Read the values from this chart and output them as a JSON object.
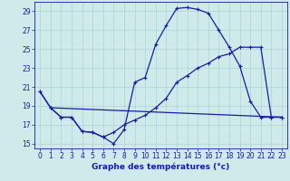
{
  "xlabel": "Graphe des températures (°c)",
  "background_color": "#ceeaea",
  "line_color": "#1a1aaa",
  "grid_color": "#aad4d4",
  "xlim": [
    -0.5,
    23.5
  ],
  "ylim": [
    14.5,
    30.0
  ],
  "xticks": [
    0,
    1,
    2,
    3,
    4,
    5,
    6,
    7,
    8,
    9,
    10,
    11,
    12,
    13,
    14,
    15,
    16,
    17,
    18,
    19,
    20,
    21,
    22,
    23
  ],
  "yticks": [
    15,
    17,
    19,
    21,
    23,
    25,
    27,
    29
  ],
  "curve1_x": [
    0,
    1,
    2,
    3,
    4,
    5,
    6,
    7,
    8,
    9,
    10,
    11,
    12,
    13,
    14,
    15,
    16,
    17,
    18,
    19,
    20,
    21,
    22,
    23
  ],
  "curve1_y": [
    20.5,
    18.8,
    17.8,
    17.8,
    16.3,
    16.2,
    15.7,
    15.0,
    16.5,
    21.5,
    22.0,
    25.5,
    27.5,
    29.3,
    29.4,
    29.2,
    28.8,
    27.0,
    25.2,
    23.2,
    19.5,
    17.8,
    17.8,
    17.8
  ],
  "curve2_x": [
    0,
    1,
    2,
    3,
    4,
    5,
    6,
    7,
    8,
    9,
    10,
    11,
    12,
    13,
    14,
    15,
    16,
    17,
    18,
    19,
    20,
    21,
    22,
    23
  ],
  "curve2_y": [
    20.5,
    18.8,
    17.8,
    17.8,
    16.3,
    16.2,
    15.7,
    16.2,
    17.0,
    17.5,
    18.0,
    18.8,
    19.8,
    21.5,
    22.2,
    23.0,
    23.5,
    24.2,
    24.5,
    25.2,
    25.2,
    25.2,
    17.8,
    17.8
  ],
  "curve3_x": [
    1,
    23
  ],
  "curve3_y": [
    18.8,
    17.8
  ],
  "marker_size": 2.0,
  "line_width": 0.9,
  "tick_fontsize": 5.5,
  "xlabel_fontsize": 6.5
}
